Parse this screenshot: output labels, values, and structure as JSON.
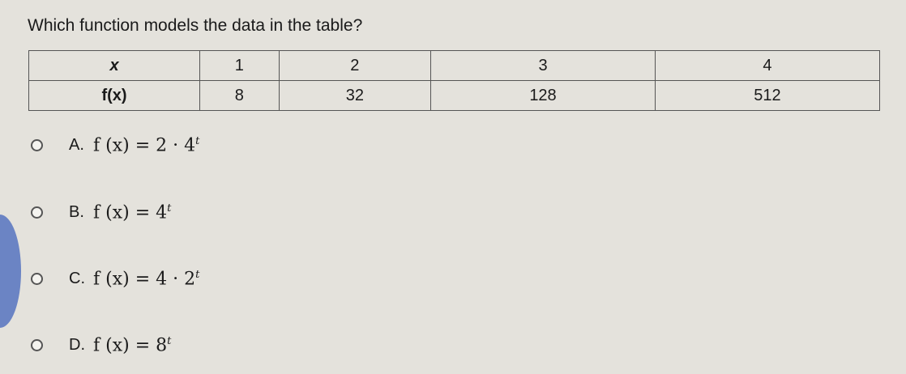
{
  "question": "Which function models the data in the table?",
  "table": {
    "row_x": {
      "label": "x",
      "values": [
        "1",
        "2",
        "3",
        "4"
      ]
    },
    "row_fx": {
      "label": "f(x)",
      "values": [
        "8",
        "32",
        "128",
        "512"
      ]
    }
  },
  "options": [
    {
      "letter": "A.",
      "lhs": "f (x) = 2 · 4",
      "exp": "t"
    },
    {
      "letter": "B.",
      "lhs": "f (x) = 4",
      "exp": "t"
    },
    {
      "letter": "C.",
      "lhs": "f (x) = 4 · 2",
      "exp": "t"
    },
    {
      "letter": "D.",
      "lhs": "f (x) = 8",
      "exp": "t"
    }
  ]
}
